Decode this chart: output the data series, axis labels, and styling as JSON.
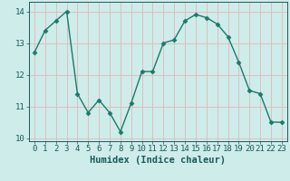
{
  "x": [
    0,
    1,
    2,
    3,
    4,
    5,
    6,
    7,
    8,
    9,
    10,
    11,
    12,
    13,
    14,
    15,
    16,
    17,
    18,
    19,
    20,
    21,
    22,
    23
  ],
  "y": [
    12.7,
    13.4,
    13.7,
    14.0,
    11.4,
    10.8,
    11.2,
    10.8,
    10.2,
    11.1,
    12.1,
    12.1,
    13.0,
    13.1,
    13.7,
    13.9,
    13.8,
    13.6,
    13.2,
    12.4,
    11.5,
    11.4,
    10.5,
    10.5
  ],
  "line_color": "#1a7a6a",
  "marker": "D",
  "marker_size": 2.5,
  "bg_color": "#ceecea",
  "grid_color": "#e0b8b8",
  "xlabel": "Humidex (Indice chaleur)",
  "ylim": [
    9.9,
    14.3
  ],
  "yticks": [
    10,
    11,
    12,
    13,
    14
  ],
  "xticks": [
    0,
    1,
    2,
    3,
    4,
    5,
    6,
    7,
    8,
    9,
    10,
    11,
    12,
    13,
    14,
    15,
    16,
    17,
    18,
    19,
    20,
    21,
    22,
    23
  ],
  "tick_color": "#1a5a5a",
  "label_fontsize": 7.5,
  "tick_fontsize": 6.5
}
